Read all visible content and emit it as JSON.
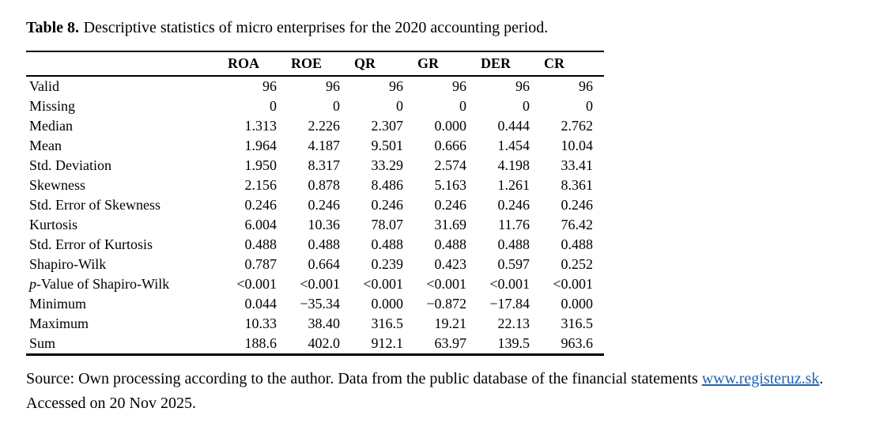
{
  "caption": {
    "label": "Table 8.",
    "text": "Descriptive statistics of micro enterprises for the 2020 accounting period."
  },
  "table": {
    "columns": [
      "ROA",
      "ROE",
      "QR",
      "GR",
      "DER",
      "CR"
    ],
    "rows": [
      {
        "label": "Valid",
        "values": [
          "96",
          "96",
          "96",
          "96",
          "96",
          "96"
        ]
      },
      {
        "label": "Missing",
        "values": [
          "0",
          "0",
          "0",
          "0",
          "0",
          "0"
        ]
      },
      {
        "label": "Median",
        "values": [
          "1.313",
          "2.226",
          "2.307",
          "0.000",
          "0.444",
          "2.762"
        ]
      },
      {
        "label": "Mean",
        "values": [
          "1.964",
          "4.187",
          "9.501",
          "0.666",
          "1.454",
          "10.04"
        ]
      },
      {
        "label": "Std. Deviation",
        "values": [
          "1.950",
          "8.317",
          "33.29",
          "2.574",
          "4.198",
          "33.41"
        ]
      },
      {
        "label": "Skewness",
        "values": [
          "2.156",
          "0.878",
          "8.486",
          "5.163",
          "1.261",
          "8.361"
        ]
      },
      {
        "label": "Std. Error of Skewness",
        "values": [
          "0.246",
          "0.246",
          "0.246",
          "0.246",
          "0.246",
          "0.246"
        ]
      },
      {
        "label": "Kurtosis",
        "values": [
          "6.004",
          "10.36",
          "78.07",
          "31.69",
          "11.76",
          "76.42"
        ]
      },
      {
        "label": "Std. Error of Kurtosis",
        "values": [
          "0.488",
          "0.488",
          "0.488",
          "0.488",
          "0.488",
          "0.488"
        ]
      },
      {
        "label": "Shapiro-Wilk",
        "values": [
          "0.787",
          "0.664",
          "0.239",
          "0.423",
          "0.597",
          "0.252"
        ]
      },
      {
        "label": "p-Value of Shapiro-Wilk",
        "label_italic_prefix_len": 1,
        "values": [
          "<0.001",
          "<0.001",
          "<0.001",
          "<0.001",
          "<0.001",
          "<0.001"
        ]
      },
      {
        "label": "Minimum",
        "values": [
          "0.044",
          "−35.34",
          "0.000",
          "−0.872",
          "−17.84",
          "0.000"
        ]
      },
      {
        "label": "Maximum",
        "values": [
          "10.33",
          "38.40",
          "316.5",
          "19.21",
          "22.13",
          "316.5"
        ]
      },
      {
        "label": "Sum",
        "values": [
          "188.6",
          "402.0",
          "912.1",
          "63.97",
          "139.5",
          "963.6"
        ]
      }
    ]
  },
  "source": {
    "line1": "Source: Own processing according to the author. Data from the public database of the financial statements",
    "link_text": "www.registeruz.sk",
    "after_link": ". Accessed on 20 Nov 2025."
  },
  "colors": {
    "text": "#000000",
    "background": "#ffffff",
    "rule": "#000000",
    "link_blue": "#2062af"
  }
}
